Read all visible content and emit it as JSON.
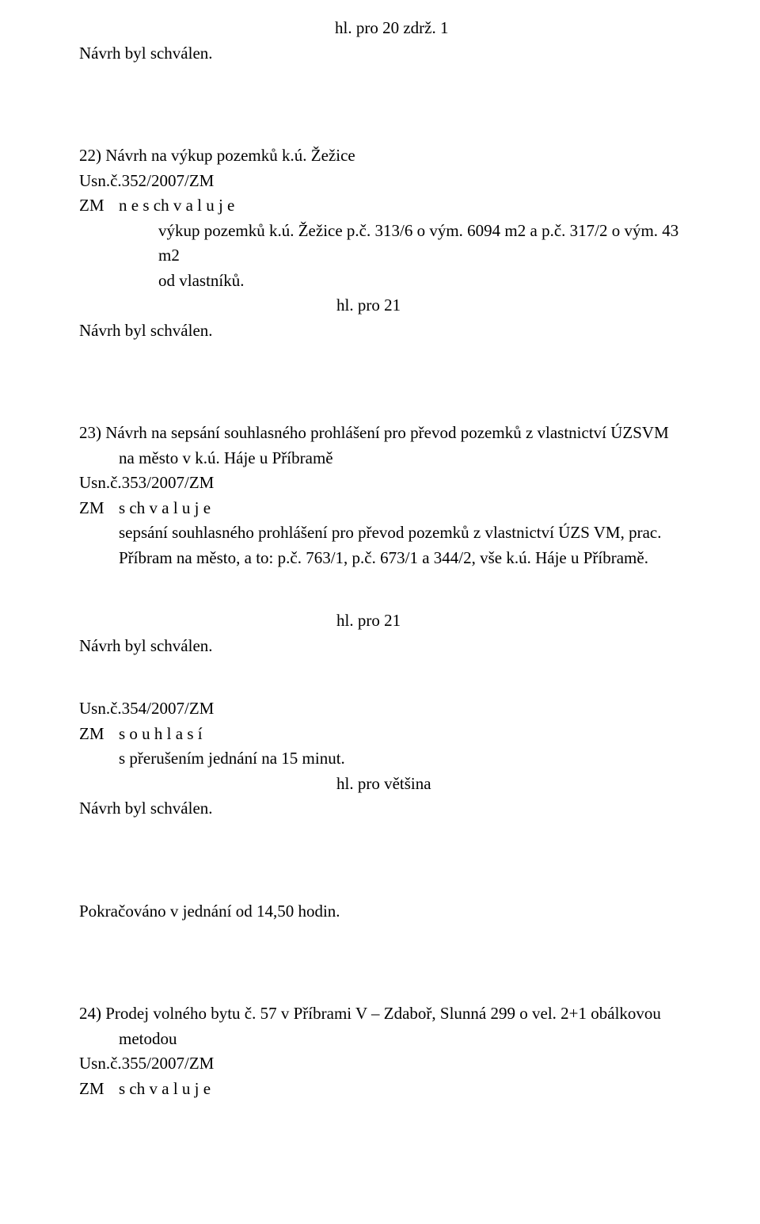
{
  "colors": {
    "text": "#000000",
    "background": "#ffffff"
  },
  "typography": {
    "font_family": "Times New Roman",
    "font_size_pt": 16,
    "line_height": 1.5
  },
  "vote_line_top": "hl. pro 20    zdrž. 1",
  "item21": {
    "approved": "Návrh byl schválen."
  },
  "item22": {
    "heading": "22) Návrh na výkup pozemků k.ú. Žežice",
    "usn": "Usn.č.352/2007/ZM",
    "prefix": "ZM",
    "action": "n e s ch v a l u j e",
    "body_line1": "výkup pozemků k.ú. Žežice p.č. 313/6 o vým. 6094 m2 a p.č. 317/2 o vým. 43 m2",
    "body_line2": "od vlastníků.",
    "vote": "hl. pro 21",
    "approved": "Návrh byl schválen."
  },
  "item23": {
    "heading_line1": "23) Návrh na sepsání souhlasného prohlášení pro převod pozemků z vlastnictví ÚZSVM",
    "heading_line2": "na město v k.ú. Háje u Příbramě",
    "usn": "Usn.č.353/2007/ZM",
    "prefix": "ZM",
    "action": "s ch v a l u j e",
    "body_line1": "sepsání souhlasného prohlášení pro převod pozemků z vlastnictví ÚZS VM, prac.",
    "body_line2": "Příbram na město, a to: p.č. 763/1, p.č. 673/1 a 344/2, vše k.ú. Háje u Příbramě.",
    "vote": "hl. pro 21",
    "approved": "Návrh byl schválen."
  },
  "item354": {
    "usn": "Usn.č.354/2007/ZM",
    "prefix": "ZM",
    "action": "s o u h l a s í",
    "body": "s přerušením jednání na 15 minut.",
    "vote": "hl. pro většina",
    "approved": "Návrh byl schválen."
  },
  "resume": "Pokračováno v jednání od 14,50 hodin.",
  "item24": {
    "heading_line1": "24) Prodej volného bytu č. 57 v Příbrami V – Zdaboř, Slunná 299 o vel. 2+1 obálkovou",
    "heading_line2": "metodou",
    "usn": "Usn.č.355/2007/ZM",
    "prefix": "ZM",
    "action": "s ch v a l u j e"
  }
}
